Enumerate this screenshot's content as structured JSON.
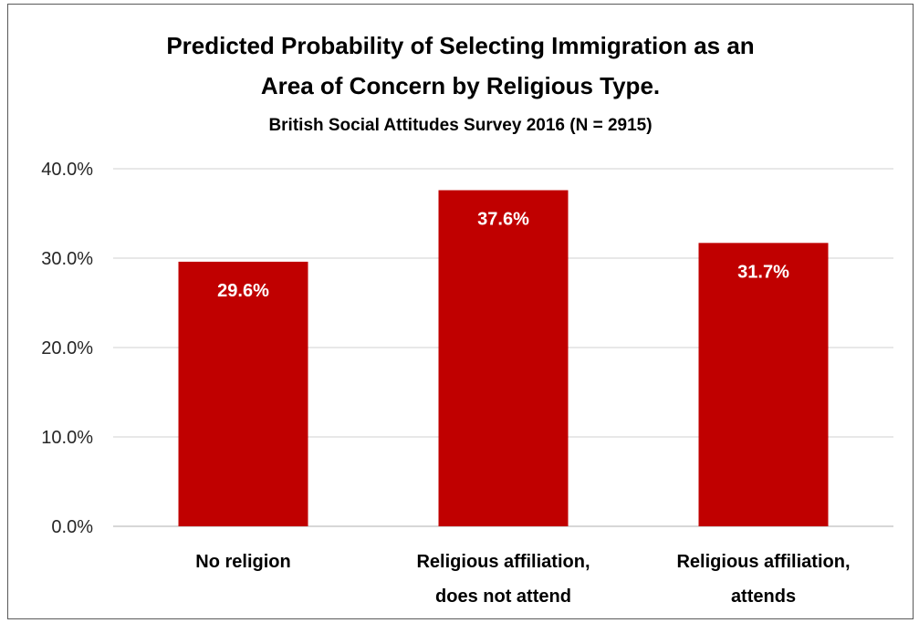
{
  "chart_data": {
    "type": "bar",
    "title_lines": [
      "Predicted Probability of Selecting Immigration as an",
      "Area of Concern by Religious Type."
    ],
    "subtitle": "British Social Attitudes Survey 2016 (N = 2915)",
    "categories": [
      [
        "No religion"
      ],
      [
        "Religious affiliation,",
        "does not attend"
      ],
      [
        "Religious affiliation,",
        "attends"
      ]
    ],
    "values": [
      29.6,
      37.6,
      31.7
    ],
    "data_labels": [
      "29.6%",
      "37.6%",
      "31.7%"
    ],
    "y_ticks": [
      0,
      10,
      20,
      30,
      40
    ],
    "y_tick_labels": [
      "0.0%",
      "10.0%",
      "20.0%",
      "30.0%",
      "40.0%"
    ],
    "ylim": [
      0,
      40
    ],
    "grid": true,
    "legend": "none",
    "bar_color": "#c00000",
    "grid_color": "#d9d9d9"
  }
}
